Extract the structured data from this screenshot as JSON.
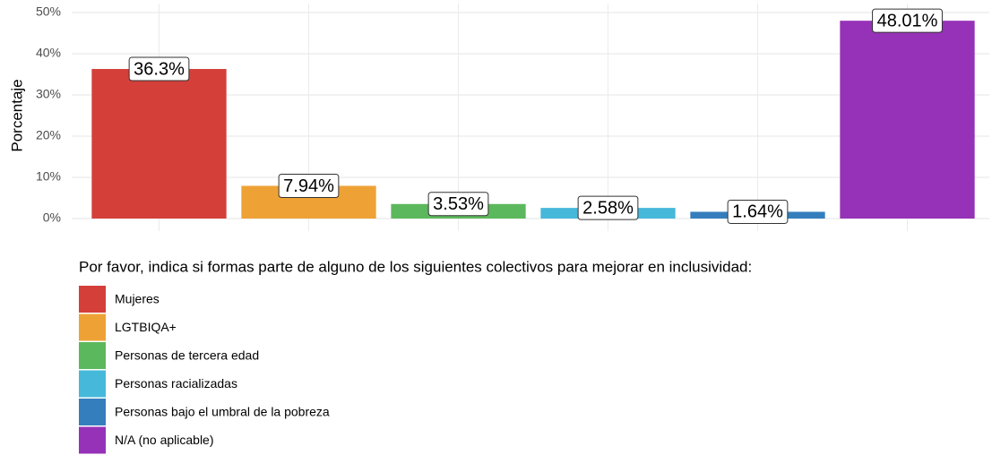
{
  "chart_data": {
    "type": "bar",
    "y_label": "Porcentaje",
    "legend_title": "Por favor, indica si formas parte de alguno de los siguientes colectivos para mejorar en inclusividad:",
    "categories": [
      "Mujeres",
      "LGTBIQA+",
      "Personas de tercera edad",
      "Personas racializadas",
      "Personas bajo el umbral de la pobreza",
      "N/A (no aplicable)"
    ],
    "values": [
      36.3,
      7.94,
      3.53,
      2.58,
      1.64,
      48.01
    ],
    "value_labels": [
      "36.3%",
      "7.94%",
      "3.53%",
      "2.58%",
      "1.64%",
      "48.01%"
    ],
    "colors": [
      "#d43f3a",
      "#eea236",
      "#5cb85c",
      "#46b8da",
      "#357ebd",
      "#9632b8"
    ],
    "ylim": [
      0,
      50
    ],
    "yticks": [
      {
        "value": 0,
        "label": "0%"
      },
      {
        "value": 10,
        "label": "10%"
      },
      {
        "value": 20,
        "label": "20%"
      },
      {
        "value": 30,
        "label": "30%"
      },
      {
        "value": 40,
        "label": "40%"
      },
      {
        "value": 50,
        "label": "50%"
      }
    ],
    "grid": true
  }
}
